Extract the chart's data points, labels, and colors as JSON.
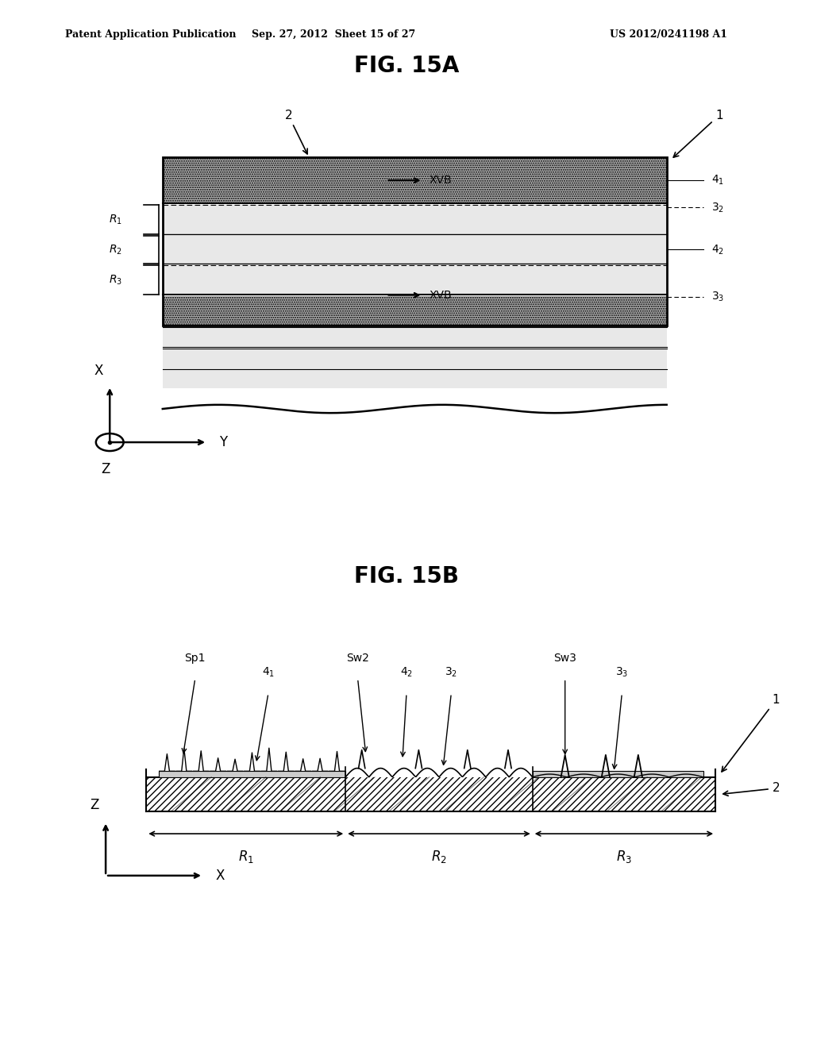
{
  "title_15a": "FIG. 15A",
  "title_15b": "FIG. 15B",
  "header_left": "Patent Application Publication",
  "header_mid": "Sep. 27, 2012  Sheet 15 of 27",
  "header_right": "US 2012/0241198 A1",
  "bg_color": "#ffffff"
}
